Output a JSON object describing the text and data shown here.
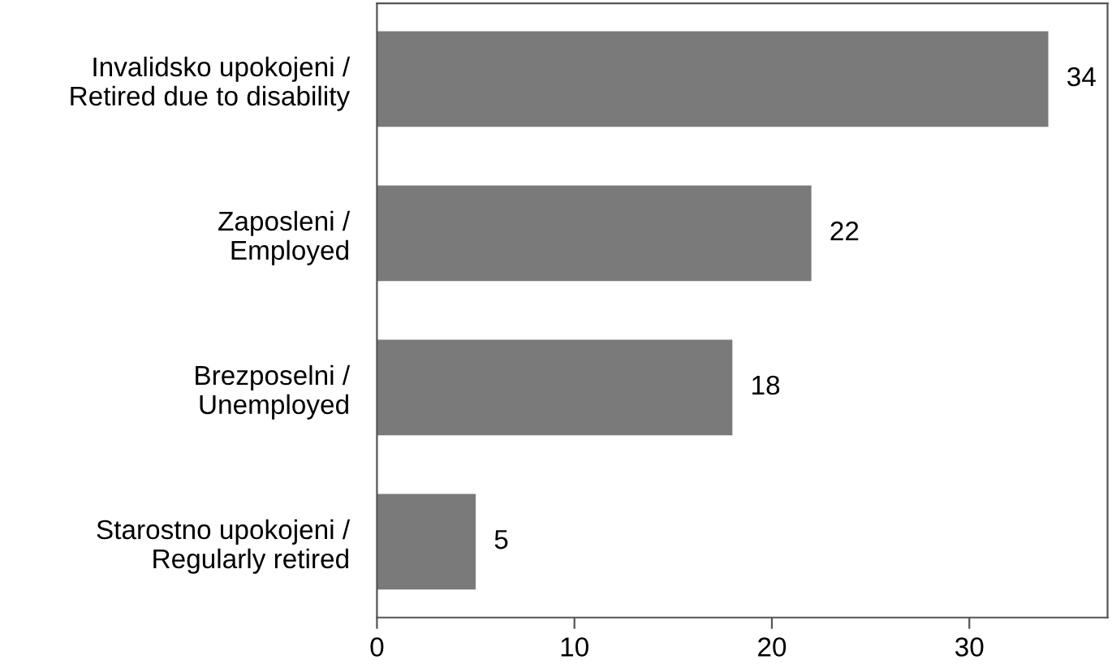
{
  "chart_data": {
    "type": "bar",
    "orientation": "horizontal",
    "categories": [
      "Invalidsko upokojeni /\nRetired due to disability",
      "Zaposleni /\nEmployed",
      "Brezposelni /\nUnemployed",
      "Starostno upokojeni /\nRegularly retired"
    ],
    "values": [
      34,
      22,
      18,
      5
    ],
    "color": "#7a7a7a",
    "xlim": [
      0,
      37
    ],
    "xticks": [
      0,
      10,
      20,
      30
    ],
    "grid": false,
    "data_labels": true
  }
}
